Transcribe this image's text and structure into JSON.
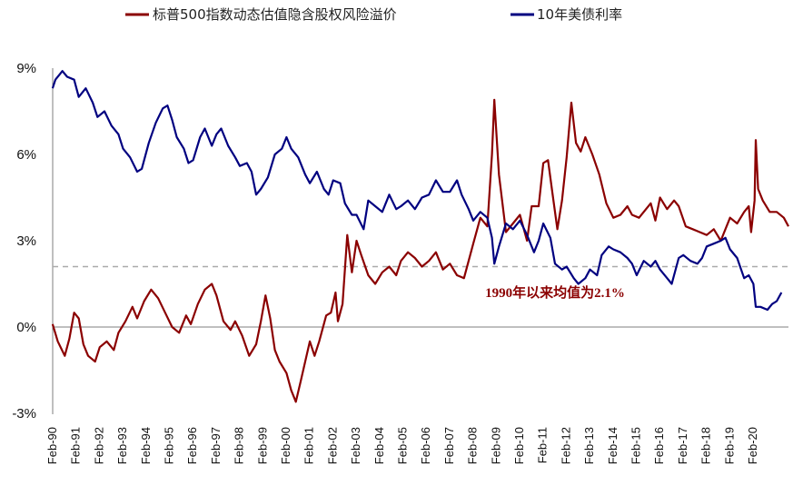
{
  "chart_data": {
    "type": "line",
    "title": "",
    "xlabel": "",
    "ylabel": "",
    "ylim": [
      -3,
      9
    ],
    "yticks": [
      "-3%",
      "0%",
      "3%",
      "6%",
      "9%"
    ],
    "ytick_values": [
      -3,
      0,
      3,
      6,
      9
    ],
    "x_range_years": [
      1990.083,
      2021.6
    ],
    "categories": [
      "Feb-90",
      "Feb-91",
      "Feb-92",
      "Feb-93",
      "Feb-94",
      "Feb-95",
      "Feb-96",
      "Feb-97",
      "Feb-98",
      "Feb-99",
      "Feb-00",
      "Feb-01",
      "Feb-02",
      "Feb-03",
      "Feb-04",
      "Feb-05",
      "Feb-06",
      "Feb-07",
      "Feb-08",
      "Feb-09",
      "Feb-10",
      "Feb-11",
      "Feb-12",
      "Feb-13",
      "Feb-14",
      "Feb-15",
      "Feb-16",
      "Feb-17",
      "Feb-18",
      "Feb-19",
      "Feb-20"
    ],
    "legend_position": "top",
    "colors": {
      "erp": "#8B0000",
      "yield": "#000080",
      "refline": "#AAAAAA",
      "axis": "#7F7F7F",
      "annotation": "#8B0000"
    },
    "series": [
      {
        "name": "标普500指数动态估值隐含股权风险溢价",
        "color": "#8B0000",
        "points": [
          [
            1990.08,
            0.1
          ],
          [
            1990.3,
            -0.5
          ],
          [
            1990.6,
            -1.0
          ],
          [
            1990.8,
            -0.4
          ],
          [
            1991.0,
            0.5
          ],
          [
            1991.2,
            0.3
          ],
          [
            1991.4,
            -0.6
          ],
          [
            1991.6,
            -1.0
          ],
          [
            1991.9,
            -1.2
          ],
          [
            1992.1,
            -0.7
          ],
          [
            1992.4,
            -0.5
          ],
          [
            1992.7,
            -0.8
          ],
          [
            1992.9,
            -0.2
          ],
          [
            1993.2,
            0.2
          ],
          [
            1993.5,
            0.7
          ],
          [
            1993.7,
            0.3
          ],
          [
            1994.0,
            0.9
          ],
          [
            1994.3,
            1.3
          ],
          [
            1994.6,
            1.0
          ],
          [
            1994.9,
            0.5
          ],
          [
            1995.2,
            0.0
          ],
          [
            1995.5,
            -0.2
          ],
          [
            1995.8,
            0.4
          ],
          [
            1996.0,
            0.1
          ],
          [
            1996.3,
            0.8
          ],
          [
            1996.6,
            1.3
          ],
          [
            1996.9,
            1.5
          ],
          [
            1997.1,
            1.1
          ],
          [
            1997.4,
            0.2
          ],
          [
            1997.7,
            -0.1
          ],
          [
            1997.9,
            0.2
          ],
          [
            1998.2,
            -0.3
          ],
          [
            1998.5,
            -1.0
          ],
          [
            1998.8,
            -0.6
          ],
          [
            1999.0,
            0.2
          ],
          [
            1999.2,
            1.1
          ],
          [
            1999.4,
            0.3
          ],
          [
            1999.6,
            -0.8
          ],
          [
            1999.8,
            -1.2
          ],
          [
            2000.1,
            -1.6
          ],
          [
            2000.3,
            -2.2
          ],
          [
            2000.5,
            -2.6
          ],
          [
            2000.7,
            -1.9
          ],
          [
            2000.9,
            -1.2
          ],
          [
            2001.1,
            -0.5
          ],
          [
            2001.3,
            -1.0
          ],
          [
            2001.5,
            -0.5
          ],
          [
            2001.8,
            0.4
          ],
          [
            2002.0,
            0.5
          ],
          [
            2002.2,
            1.2
          ],
          [
            2002.3,
            0.2
          ],
          [
            2002.5,
            0.8
          ],
          [
            2002.7,
            3.2
          ],
          [
            2002.9,
            1.9
          ],
          [
            2003.1,
            3.0
          ],
          [
            2003.3,
            2.5
          ],
          [
            2003.6,
            1.8
          ],
          [
            2003.9,
            1.5
          ],
          [
            2004.2,
            1.9
          ],
          [
            2004.5,
            2.1
          ],
          [
            2004.8,
            1.8
          ],
          [
            2005.0,
            2.3
          ],
          [
            2005.3,
            2.6
          ],
          [
            2005.6,
            2.4
          ],
          [
            2005.9,
            2.1
          ],
          [
            2006.2,
            2.3
          ],
          [
            2006.5,
            2.6
          ],
          [
            2006.8,
            2.0
          ],
          [
            2007.1,
            2.2
          ],
          [
            2007.4,
            1.8
          ],
          [
            2007.7,
            1.7
          ],
          [
            2007.9,
            2.3
          ],
          [
            2008.1,
            2.9
          ],
          [
            2008.4,
            3.8
          ],
          [
            2008.7,
            3.5
          ],
          [
            2008.9,
            6.0
          ],
          [
            2009.0,
            7.9
          ],
          [
            2009.2,
            5.3
          ],
          [
            2009.5,
            3.3
          ],
          [
            2009.8,
            3.6
          ],
          [
            2010.1,
            3.9
          ],
          [
            2010.4,
            3.0
          ],
          [
            2010.6,
            4.2
          ],
          [
            2010.9,
            4.2
          ],
          [
            2011.1,
            5.7
          ],
          [
            2011.3,
            5.8
          ],
          [
            2011.5,
            4.6
          ],
          [
            2011.7,
            3.4
          ],
          [
            2011.9,
            4.4
          ],
          [
            2012.1,
            5.9
          ],
          [
            2012.3,
            7.8
          ],
          [
            2012.5,
            6.4
          ],
          [
            2012.7,
            6.1
          ],
          [
            2012.9,
            6.6
          ],
          [
            2013.2,
            6.0
          ],
          [
            2013.5,
            5.3
          ],
          [
            2013.8,
            4.3
          ],
          [
            2014.1,
            3.8
          ],
          [
            2014.4,
            3.9
          ],
          [
            2014.7,
            4.2
          ],
          [
            2014.9,
            3.9
          ],
          [
            2015.2,
            3.8
          ],
          [
            2015.5,
            4.1
          ],
          [
            2015.7,
            4.3
          ],
          [
            2015.9,
            3.7
          ],
          [
            2016.1,
            4.5
          ],
          [
            2016.4,
            4.1
          ],
          [
            2016.7,
            4.4
          ],
          [
            2016.9,
            4.2
          ],
          [
            2017.2,
            3.5
          ],
          [
            2017.5,
            3.4
          ],
          [
            2017.8,
            3.3
          ],
          [
            2018.1,
            3.2
          ],
          [
            2018.4,
            3.4
          ],
          [
            2018.7,
            3.0
          ],
          [
            2018.9,
            3.4
          ],
          [
            2019.1,
            3.8
          ],
          [
            2019.4,
            3.6
          ],
          [
            2019.7,
            4.0
          ],
          [
            2019.9,
            4.2
          ],
          [
            2020.0,
            3.3
          ],
          [
            2020.15,
            4.4
          ],
          [
            2020.2,
            6.5
          ],
          [
            2020.3,
            4.8
          ],
          [
            2020.5,
            4.4
          ],
          [
            2020.8,
            4.0
          ],
          [
            2021.1,
            4.0
          ],
          [
            2021.4,
            3.8
          ],
          [
            2021.6,
            3.5
          ]
        ]
      },
      {
        "name": "10年美债利率",
        "color": "#000080",
        "points": [
          [
            1990.08,
            8.3
          ],
          [
            1990.2,
            8.6
          ],
          [
            1990.5,
            8.9
          ],
          [
            1990.7,
            8.7
          ],
          [
            1991.0,
            8.6
          ],
          [
            1991.2,
            8.0
          ],
          [
            1991.5,
            8.3
          ],
          [
            1991.8,
            7.8
          ],
          [
            1992.0,
            7.3
          ],
          [
            1992.3,
            7.5
          ],
          [
            1992.6,
            7.0
          ],
          [
            1992.9,
            6.7
          ],
          [
            1993.1,
            6.2
          ],
          [
            1993.4,
            5.9
          ],
          [
            1993.7,
            5.4
          ],
          [
            1993.9,
            5.5
          ],
          [
            1994.2,
            6.4
          ],
          [
            1994.5,
            7.1
          ],
          [
            1994.8,
            7.6
          ],
          [
            1995.0,
            7.7
          ],
          [
            1995.2,
            7.2
          ],
          [
            1995.4,
            6.6
          ],
          [
            1995.7,
            6.2
          ],
          [
            1995.9,
            5.7
          ],
          [
            1996.1,
            5.8
          ],
          [
            1996.4,
            6.6
          ],
          [
            1996.6,
            6.9
          ],
          [
            1996.9,
            6.3
          ],
          [
            1997.1,
            6.7
          ],
          [
            1997.3,
            6.9
          ],
          [
            1997.6,
            6.3
          ],
          [
            1997.9,
            5.9
          ],
          [
            1998.1,
            5.6
          ],
          [
            1998.4,
            5.7
          ],
          [
            1998.6,
            5.4
          ],
          [
            1998.8,
            4.6
          ],
          [
            1999.0,
            4.8
          ],
          [
            1999.3,
            5.2
          ],
          [
            1999.6,
            6.0
          ],
          [
            1999.9,
            6.2
          ],
          [
            2000.1,
            6.6
          ],
          [
            2000.3,
            6.2
          ],
          [
            2000.6,
            5.9
          ],
          [
            2000.9,
            5.3
          ],
          [
            2001.1,
            5.0
          ],
          [
            2001.4,
            5.4
          ],
          [
            2001.7,
            4.8
          ],
          [
            2001.9,
            4.6
          ],
          [
            2002.1,
            5.1
          ],
          [
            2002.4,
            5.0
          ],
          [
            2002.6,
            4.3
          ],
          [
            2002.9,
            3.9
          ],
          [
            2003.1,
            3.9
          ],
          [
            2003.4,
            3.4
          ],
          [
            2003.6,
            4.4
          ],
          [
            2003.9,
            4.2
          ],
          [
            2004.2,
            4.0
          ],
          [
            2004.5,
            4.6
          ],
          [
            2004.8,
            4.1
          ],
          [
            2005.0,
            4.2
          ],
          [
            2005.3,
            4.4
          ],
          [
            2005.6,
            4.1
          ],
          [
            2005.9,
            4.5
          ],
          [
            2006.2,
            4.6
          ],
          [
            2006.5,
            5.1
          ],
          [
            2006.8,
            4.7
          ],
          [
            2007.1,
            4.7
          ],
          [
            2007.4,
            5.1
          ],
          [
            2007.6,
            4.6
          ],
          [
            2007.9,
            4.1
          ],
          [
            2008.1,
            3.7
          ],
          [
            2008.4,
            4.0
          ],
          [
            2008.7,
            3.8
          ],
          [
            2008.9,
            3.1
          ],
          [
            2009.0,
            2.2
          ],
          [
            2009.2,
            2.8
          ],
          [
            2009.5,
            3.6
          ],
          [
            2009.8,
            3.4
          ],
          [
            2010.1,
            3.7
          ],
          [
            2010.4,
            3.2
          ],
          [
            2010.7,
            2.6
          ],
          [
            2010.9,
            3.0
          ],
          [
            2011.1,
            3.6
          ],
          [
            2011.4,
            3.1
          ],
          [
            2011.6,
            2.2
          ],
          [
            2011.9,
            2.0
          ],
          [
            2012.1,
            2.1
          ],
          [
            2012.4,
            1.7
          ],
          [
            2012.6,
            1.5
          ],
          [
            2012.9,
            1.7
          ],
          [
            2013.1,
            2.0
          ],
          [
            2013.4,
            1.8
          ],
          [
            2013.6,
            2.5
          ],
          [
            2013.9,
            2.8
          ],
          [
            2014.1,
            2.7
          ],
          [
            2014.4,
            2.6
          ],
          [
            2014.7,
            2.4
          ],
          [
            2014.9,
            2.2
          ],
          [
            2015.1,
            1.8
          ],
          [
            2015.4,
            2.3
          ],
          [
            2015.7,
            2.1
          ],
          [
            2015.9,
            2.3
          ],
          [
            2016.1,
            2.0
          ],
          [
            2016.4,
            1.7
          ],
          [
            2016.6,
            1.5
          ],
          [
            2016.9,
            2.4
          ],
          [
            2017.1,
            2.5
          ],
          [
            2017.4,
            2.3
          ],
          [
            2017.7,
            2.2
          ],
          [
            2017.9,
            2.4
          ],
          [
            2018.1,
            2.8
          ],
          [
            2018.4,
            2.9
          ],
          [
            2018.7,
            3.0
          ],
          [
            2018.9,
            3.1
          ],
          [
            2019.1,
            2.7
          ],
          [
            2019.4,
            2.4
          ],
          [
            2019.7,
            1.7
          ],
          [
            2019.9,
            1.8
          ],
          [
            2020.1,
            1.5
          ],
          [
            2020.2,
            0.7
          ],
          [
            2020.4,
            0.7
          ],
          [
            2020.7,
            0.6
          ],
          [
            2020.9,
            0.8
          ],
          [
            2021.1,
            0.9
          ],
          [
            2021.3,
            1.2
          ]
        ]
      }
    ],
    "reference_line": {
      "value": 2.1,
      "style": "dashed"
    },
    "annotation": {
      "text": "1990年以来均值为2.1%",
      "x_year": 2011.6,
      "y_value": 1.05
    }
  }
}
